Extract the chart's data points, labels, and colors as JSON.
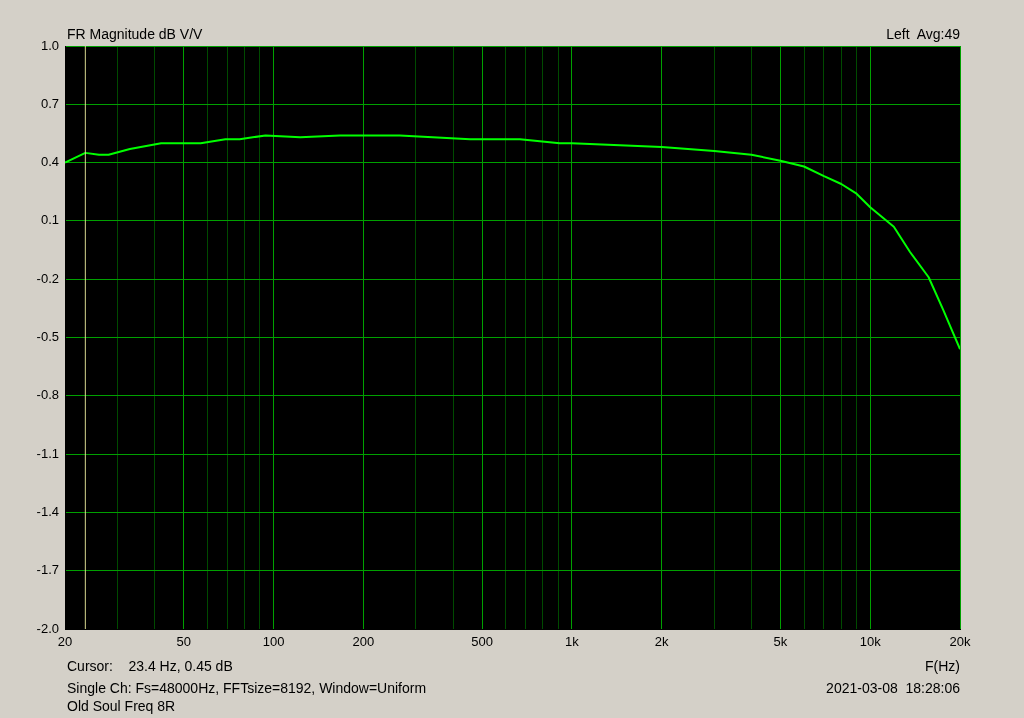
{
  "chart_data": {
    "type": "line",
    "title": "FR Magnitude dB V/V",
    "xlabel": "F(Hz)",
    "annotations": [
      "Left  Avg:49",
      "Cursor:    23.4 Hz, 0.45 dB",
      "Single Ch: Fs=48000Hz, FFTsize=8192, Window=Uniform",
      "2021-03-08  18:28:06",
      "Old Soul Freq 8R"
    ],
    "log": "x",
    "grid": true,
    "legend": false,
    "marker": "none",
    "line_style": "solid",
    "xlim": [
      20,
      20000
    ],
    "xticks": [
      20,
      {
        "value": 30,
        "label": null
      },
      {
        "value": 40,
        "label": null
      },
      50,
      {
        "value": 60,
        "label": null
      },
      {
        "value": 70,
        "label": null
      },
      {
        "value": 80,
        "label": null
      },
      {
        "value": 90,
        "label": null
      },
      100,
      200,
      {
        "value": 300,
        "label": null
      },
      {
        "value": 400,
        "label": null
      },
      500,
      {
        "value": 600,
        "label": null
      },
      {
        "value": 700,
        "label": null
      },
      {
        "value": 800,
        "label": null
      },
      {
        "value": 900,
        "label": null
      },
      {
        "value": 1000,
        "label": "1k"
      },
      {
        "value": 2000,
        "label": "2k"
      },
      {
        "value": 3000,
        "label": null
      },
      {
        "value": 4000,
        "label": null
      },
      {
        "value": 5000,
        "label": "5k"
      },
      {
        "value": 6000,
        "label": null
      },
      {
        "value": 7000,
        "label": null
      },
      {
        "value": 8000,
        "label": null
      },
      {
        "value": 9000,
        "label": null
      },
      {
        "value": 10000,
        "label": "10k"
      },
      {
        "value": 20000,
        "label": "20k"
      }
    ],
    "ylim": [
      -2.0,
      1.0
    ],
    "yticks": [
      {
        "value": -2.0,
        "label": "-2.0"
      },
      -1.7,
      -1.4,
      -1.1,
      -0.8,
      -0.5,
      -0.2,
      0.1,
      0.4,
      0.7,
      {
        "value": 1.0,
        "label": "1.0"
      }
    ],
    "ref_lines": [
      {
        "axis": "x",
        "value": 23.4,
        "color": "#d8d890"
      }
    ],
    "series": [
      {
        "color": "#00ff00",
        "x": [
          20,
          23.4,
          26,
          28,
          33,
          42,
          57,
          69,
          77,
          94,
          123,
          167,
          265,
          456,
          670,
          910,
          1000,
          2000,
          3000,
          4000,
          5000,
          6000,
          7000,
          8000,
          9000,
          10000,
          12000,
          13600,
          15700,
          17600,
          19000,
          20000
        ],
        "values": [
          0.4,
          0.45,
          0.44,
          0.44,
          0.47,
          0.5,
          0.5,
          0.52,
          0.52,
          0.54,
          0.53,
          0.54,
          0.54,
          0.52,
          0.52,
          0.5,
          0.5,
          0.48,
          0.46,
          0.44,
          0.41,
          0.38,
          0.33,
          0.29,
          0.24,
          0.17,
          0.07,
          -0.06,
          -0.19,
          -0.36,
          -0.48,
          -0.56
        ]
      }
    ]
  }
}
